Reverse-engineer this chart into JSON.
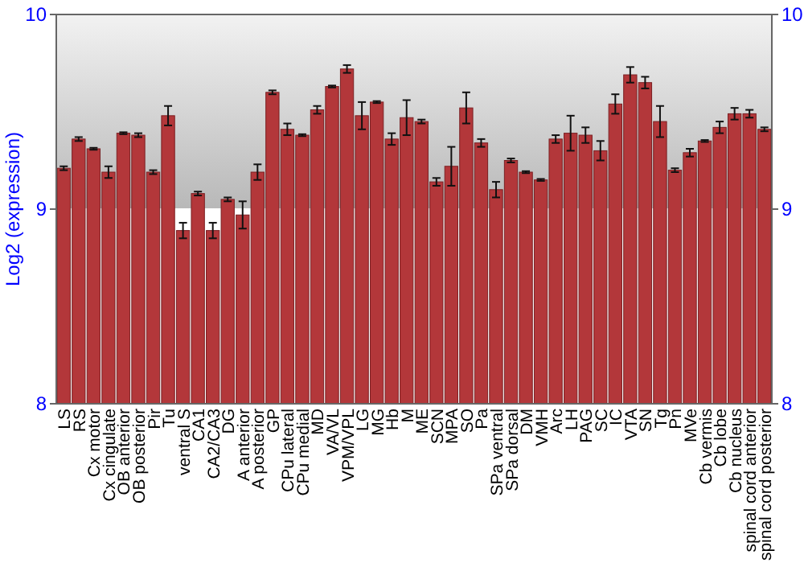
{
  "chart_data": {
    "type": "bar",
    "ylabel": "Log2 (expression)",
    "categories": [
      "LS",
      "RS",
      "Cx motor",
      "Cx cingulate",
      "OB anterior",
      "OB posterior",
      "Pir",
      "Tu",
      "ventral S",
      "CA1",
      "CA2/CA3",
      "DG",
      "A anterior",
      "A posterior",
      "GP",
      "CPu lateral",
      "CPu medial",
      "MD",
      "VA/VL",
      "VPM/VPL",
      "LG",
      "MG",
      "Hb",
      "M",
      "ME",
      "SCN",
      "MPA",
      "SO",
      "Pa",
      "SPa ventral",
      "SPa dorsal",
      "DM",
      "VMH",
      "Arc",
      "LH",
      "PAG",
      "SC",
      "IC",
      "VTA",
      "SN",
      "Tg",
      "Pn",
      "MVe",
      "Cb vermis",
      "Cb lobe",
      "Cb nucleus",
      "spinal cord anterior",
      "spinal cord posterior"
    ],
    "values": [
      9.21,
      9.36,
      9.31,
      9.19,
      9.39,
      9.38,
      9.19,
      9.48,
      8.89,
      9.08,
      8.89,
      9.05,
      8.97,
      9.19,
      9.6,
      9.41,
      9.38,
      9.51,
      9.63,
      9.72,
      9.48,
      9.55,
      9.36,
      9.47,
      9.45,
      9.14,
      9.22,
      9.52,
      9.34,
      9.1,
      9.25,
      9.19,
      9.15,
      9.36,
      9.39,
      9.38,
      9.3,
      9.54,
      9.69,
      9.65,
      9.45,
      9.2,
      9.29,
      9.35,
      9.42,
      9.49,
      9.49,
      9.41
    ],
    "errors": [
      0.01,
      0.01,
      0.005,
      0.03,
      0.005,
      0.01,
      0.01,
      0.05,
      0.04,
      0.01,
      0.04,
      0.01,
      0.07,
      0.04,
      0.01,
      0.03,
      0.005,
      0.02,
      0.005,
      0.02,
      0.07,
      0.005,
      0.03,
      0.09,
      0.01,
      0.02,
      0.1,
      0.08,
      0.02,
      0.04,
      0.01,
      0.005,
      0.005,
      0.02,
      0.09,
      0.04,
      0.05,
      0.05,
      0.04,
      0.03,
      0.08,
      0.01,
      0.02,
      0.005,
      0.03,
      0.03,
      0.02,
      0.01
    ],
    "color": "#b3373a",
    "ylim": [
      8,
      10
    ],
    "yticks": [
      8,
      9,
      10
    ],
    "y2lim": [
      8,
      10
    ],
    "y2ticks": [
      8,
      9,
      10
    ],
    "grid": "y"
  }
}
